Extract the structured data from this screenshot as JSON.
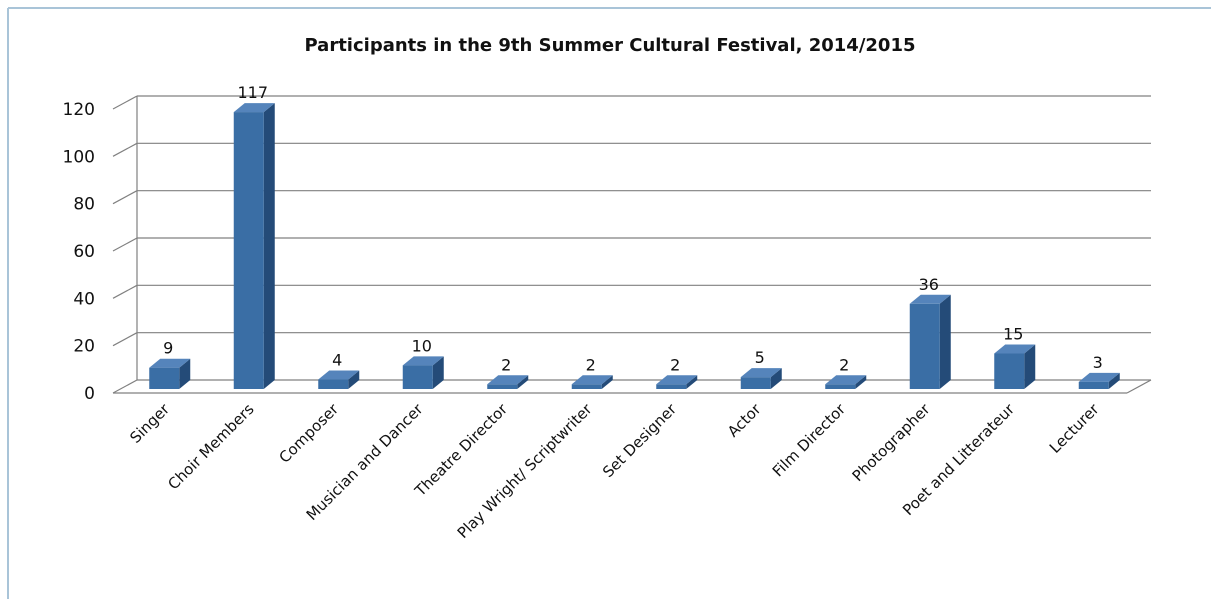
{
  "chart_data": {
    "type": "bar",
    "title": "Participants in the 9th Summer Cultural Festival, 2014/2015",
    "categories": [
      "Singer",
      "Choir Members",
      "Composer",
      "Musician and Dancer",
      "Theatre Director",
      "Play Wright/ Scriptwriter",
      "Set Designer",
      "Actor",
      "Film Director",
      "Photographer",
      "Poet and Litterateur",
      "Lecturer"
    ],
    "values": [
      9,
      117,
      4,
      10,
      2,
      2,
      2,
      5,
      2,
      36,
      15,
      3
    ],
    "data_labels": [
      "9",
      "117",
      "4",
      "10",
      "2",
      "2",
      "2",
      "5",
      "2",
      "36",
      "15",
      "3"
    ],
    "ylim": [
      0,
      120
    ],
    "yticks": [
      0,
      20,
      40,
      60,
      80,
      100,
      120
    ],
    "ytick_labels": [
      "0",
      "20",
      "40",
      "60",
      "80",
      "100",
      "120"
    ],
    "grid": true,
    "style": "3d-column",
    "colors": {
      "bar_front": "#3a6ea5",
      "bar_side": "#244b78",
      "bar_top": "#5584bb",
      "grid": "#808080",
      "frame_border": "#a9c4d8"
    }
  }
}
